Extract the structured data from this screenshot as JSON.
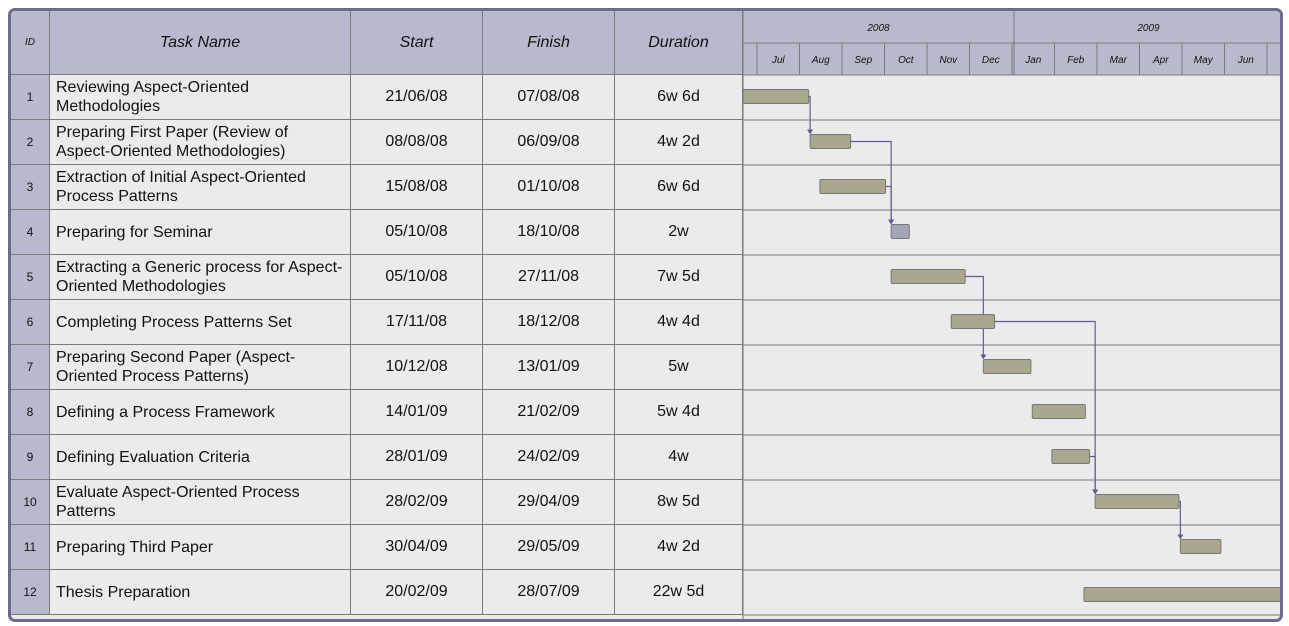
{
  "header": {
    "id": "ID",
    "task": "Task Name",
    "start": "Start",
    "finish": "Finish",
    "duration": "Duration"
  },
  "years": [
    "2008",
    "2009"
  ],
  "months": [
    "Jul",
    "Aug",
    "Sep",
    "Oct",
    "Nov",
    "Dec",
    "Jan",
    "Feb",
    "Mar",
    "Apr",
    "May",
    "Jun"
  ],
  "rows": [
    [
      "1",
      "Reviewing Aspect-Oriented Methodologies",
      "21/06/08",
      "07/08/08",
      "6w 6d"
    ],
    [
      "2",
      "Preparing First Paper (Review of Aspect-Oriented Methodologies)",
      "08/08/08",
      "06/09/08",
      "4w 2d"
    ],
    [
      "3",
      "Extraction of Initial Aspect-Oriented Process Patterns",
      "15/08/08",
      "01/10/08",
      "6w 6d"
    ],
    [
      "4",
      "Preparing for Seminar",
      "05/10/08",
      "18/10/08",
      "2w"
    ],
    [
      "5",
      "Extracting a Generic process for Aspect-Oriented Methodologies",
      "05/10/08",
      "27/11/08",
      "7w 5d"
    ],
    [
      "6",
      "Completing Process Patterns Set",
      "17/11/08",
      "18/12/08",
      "4w 4d"
    ],
    [
      "7",
      "Preparing Second Paper (Aspect-Oriented Process Patterns)",
      "10/12/08",
      "13/01/09",
      "5w"
    ],
    [
      "8",
      "Defining a Process Framework",
      "14/01/09",
      "21/02/09",
      "5w 4d"
    ],
    [
      "9",
      "Defining Evaluation Criteria",
      "28/01/09",
      "24/02/09",
      "4w"
    ],
    [
      "10",
      "Evaluate Aspect-Oriented Process Patterns",
      "28/02/09",
      "29/04/09",
      "8w 5d"
    ],
    [
      "11",
      "Preparing Third Paper",
      "30/04/09",
      "29/05/09",
      "4w 2d"
    ],
    [
      "12",
      "Thesis Preparation",
      "20/02/09",
      "28/07/09",
      "22w 5d"
    ]
  ]
}
